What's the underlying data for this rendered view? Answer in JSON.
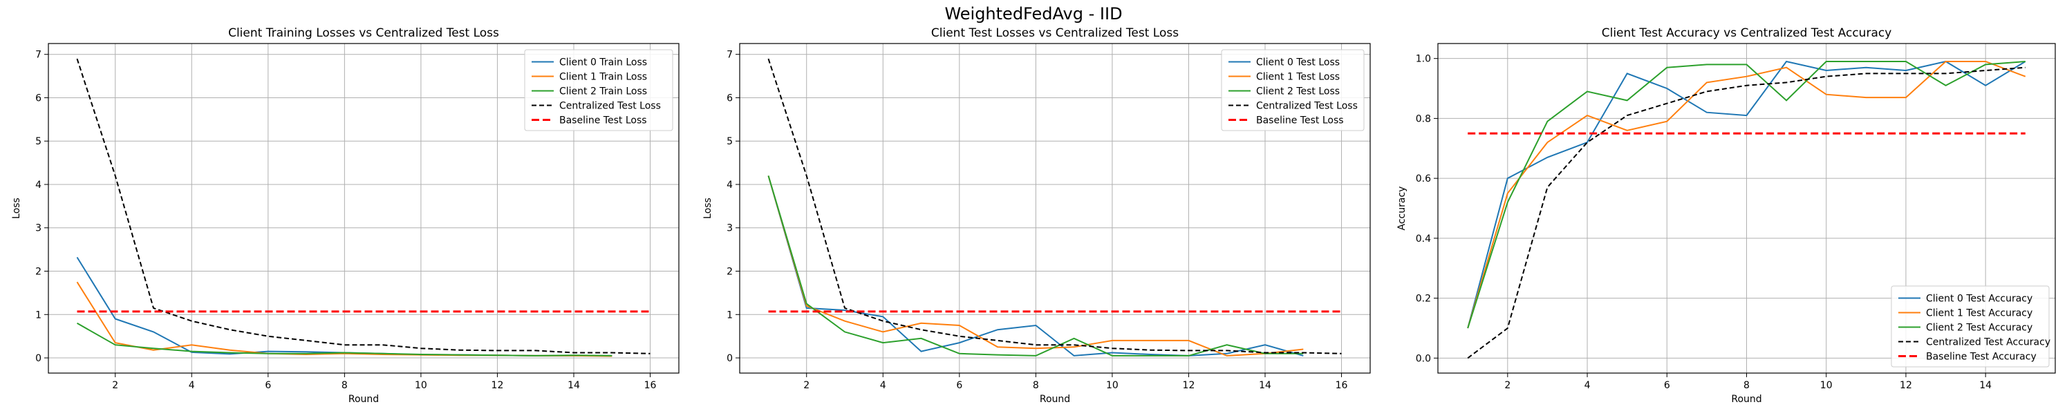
{
  "suptitle": "WeightedFedAvg - IID",
  "colors": {
    "client0": "#1f77b4",
    "client1": "#ff7f0e",
    "client2": "#2ca02c",
    "centralized": "#000000",
    "baseline": "#ff0000",
    "grid": "#b0b0b0"
  },
  "chart_data": [
    {
      "type": "line",
      "title": "Client Training Losses vs Centralized Test Loss",
      "xlabel": "Round",
      "ylabel": "Loss",
      "xlim": [
        0.25,
        16.75
      ],
      "ylim": [
        -0.35,
        7.25
      ],
      "xticks": [
        2,
        4,
        6,
        8,
        10,
        12,
        14,
        16
      ],
      "yticks": [
        0,
        1,
        2,
        3,
        4,
        5,
        6,
        7
      ],
      "grid": true,
      "legend_position": "top-right",
      "series": [
        {
          "name": "Client 0 Train Loss",
          "color": "#1f77b4",
          "style": "solid",
          "x": [
            1,
            2,
            3,
            4,
            5,
            6,
            7,
            8,
            9,
            10,
            11,
            12,
            13,
            14,
            15
          ],
          "y": [
            2.32,
            0.9,
            0.6,
            0.13,
            0.09,
            0.15,
            0.14,
            0.12,
            0.1,
            0.07,
            0.07,
            0.06,
            0.05,
            0.05,
            0.05
          ]
        },
        {
          "name": "Client 1 Train Loss",
          "color": "#ff7f0e",
          "style": "solid",
          "x": [
            1,
            2,
            3,
            4,
            5,
            6,
            7,
            8,
            9,
            10,
            11,
            12,
            13,
            14,
            15
          ],
          "y": [
            1.75,
            0.35,
            0.18,
            0.3,
            0.18,
            0.1,
            0.08,
            0.1,
            0.08,
            0.07,
            0.06,
            0.06,
            0.05,
            0.05,
            0.04
          ]
        },
        {
          "name": "Client 2 Train Loss",
          "color": "#2ca02c",
          "style": "solid",
          "x": [
            1,
            2,
            3,
            4,
            5,
            6,
            7,
            8,
            9,
            10,
            11,
            12,
            13,
            14,
            15
          ],
          "y": [
            0.8,
            0.3,
            0.22,
            0.15,
            0.12,
            0.1,
            0.1,
            0.12,
            0.1,
            0.08,
            0.07,
            0.06,
            0.05,
            0.06,
            0.05
          ]
        },
        {
          "name": "Centralized Test Loss",
          "color": "#000000",
          "style": "dashed",
          "x": [
            1,
            2,
            3,
            4,
            5,
            6,
            7,
            8,
            9,
            10,
            11,
            12,
            13,
            14,
            15,
            16
          ],
          "y": [
            6.9,
            4.2,
            1.15,
            0.85,
            0.65,
            0.5,
            0.4,
            0.3,
            0.3,
            0.22,
            0.18,
            0.17,
            0.17,
            0.12,
            0.12,
            0.1
          ]
        },
        {
          "name": "Baseline Test Loss",
          "color": "#ff0000",
          "style": "dashed-thick",
          "x": [
            1,
            16
          ],
          "y": [
            1.07,
            1.07
          ]
        }
      ]
    },
    {
      "type": "line",
      "title": "Client Test Losses vs Centralized Test Loss",
      "xlabel": "Round",
      "ylabel": "Loss",
      "xlim": [
        0.25,
        16.75
      ],
      "ylim": [
        -0.35,
        7.25
      ],
      "xticks": [
        2,
        4,
        6,
        8,
        10,
        12,
        14,
        16
      ],
      "yticks": [
        0,
        1,
        2,
        3,
        4,
        5,
        6,
        7
      ],
      "grid": true,
      "legend_position": "top-right",
      "series": [
        {
          "name": "Client 0 Test Loss",
          "color": "#1f77b4",
          "style": "solid",
          "x": [
            1,
            2,
            3,
            4,
            5,
            6,
            7,
            8,
            9,
            10,
            11,
            12,
            13,
            14,
            15
          ],
          "y": [
            4.2,
            1.15,
            1.1,
            0.95,
            0.15,
            0.35,
            0.65,
            0.75,
            0.05,
            0.12,
            0.08,
            0.05,
            0.1,
            0.3,
            0.05
          ]
        },
        {
          "name": "Client 1 Test Loss",
          "color": "#ff7f0e",
          "style": "solid",
          "x": [
            1,
            2,
            3,
            4,
            5,
            6,
            7,
            8,
            9,
            10,
            11,
            12,
            13,
            14,
            15
          ],
          "y": [
            4.2,
            1.2,
            0.85,
            0.6,
            0.8,
            0.75,
            0.25,
            0.22,
            0.25,
            0.4,
            0.4,
            0.4,
            0.05,
            0.1,
            0.2
          ]
        },
        {
          "name": "Client 2 Test Loss",
          "color": "#2ca02c",
          "style": "solid",
          "x": [
            1,
            2,
            3,
            4,
            5,
            6,
            7,
            8,
            9,
            10,
            11,
            12,
            13,
            14,
            15
          ],
          "y": [
            4.2,
            1.25,
            0.6,
            0.35,
            0.45,
            0.1,
            0.07,
            0.05,
            0.45,
            0.05,
            0.05,
            0.05,
            0.3,
            0.1,
            0.1
          ]
        },
        {
          "name": "Centralized Test Loss",
          "color": "#000000",
          "style": "dashed",
          "x": [
            1,
            2,
            3,
            4,
            5,
            6,
            7,
            8,
            9,
            10,
            11,
            12,
            13,
            14,
            15,
            16
          ],
          "y": [
            6.9,
            4.2,
            1.15,
            0.85,
            0.65,
            0.5,
            0.4,
            0.3,
            0.3,
            0.22,
            0.18,
            0.17,
            0.17,
            0.12,
            0.12,
            0.1
          ]
        },
        {
          "name": "Baseline Test Loss",
          "color": "#ff0000",
          "style": "dashed-thick",
          "x": [
            1,
            16
          ],
          "y": [
            1.07,
            1.07
          ]
        }
      ]
    },
    {
      "type": "line",
      "title": "Client Test Accuracy vs Centralized Test Accuracy",
      "xlabel": "Round",
      "ylabel": "Accuracy",
      "xlim": [
        0.25,
        15.75
      ],
      "ylim": [
        -0.05,
        1.05
      ],
      "xticks": [
        2,
        4,
        6,
        8,
        10,
        12,
        14
      ],
      "yticks": [
        0.0,
        0.2,
        0.4,
        0.6,
        0.8,
        1.0
      ],
      "ytick_labels": [
        "0.0",
        "0.2",
        "0.4",
        "0.6",
        "0.8",
        "1.0"
      ],
      "grid": true,
      "legend_position": "bottom-right",
      "series": [
        {
          "name": "Client 0 Test Accuracy",
          "color": "#1f77b4",
          "style": "solid",
          "x": [
            1,
            2,
            3,
            4,
            5,
            6,
            7,
            8,
            9,
            10,
            11,
            12,
            13,
            14,
            15
          ],
          "y": [
            0.1,
            0.6,
            0.67,
            0.72,
            0.95,
            0.9,
            0.82,
            0.81,
            0.99,
            0.96,
            0.97,
            0.96,
            0.99,
            0.91,
            0.99
          ]
        },
        {
          "name": "Client 1 Test Accuracy",
          "color": "#ff7f0e",
          "style": "solid",
          "x": [
            1,
            2,
            3,
            4,
            5,
            6,
            7,
            8,
            9,
            10,
            11,
            12,
            13,
            14,
            15
          ],
          "y": [
            0.1,
            0.55,
            0.72,
            0.81,
            0.76,
            0.79,
            0.92,
            0.94,
            0.97,
            0.88,
            0.87,
            0.87,
            0.99,
            0.99,
            0.94
          ]
        },
        {
          "name": "Client 2 Test Accuracy",
          "color": "#2ca02c",
          "style": "solid",
          "x": [
            1,
            2,
            3,
            4,
            5,
            6,
            7,
            8,
            9,
            10,
            11,
            12,
            13,
            14,
            15
          ],
          "y": [
            0.1,
            0.52,
            0.79,
            0.89,
            0.86,
            0.97,
            0.98,
            0.98,
            0.86,
            0.99,
            0.99,
            0.99,
            0.91,
            0.98,
            0.99
          ]
        },
        {
          "name": "Centralized Test Accuracy",
          "color": "#000000",
          "style": "dashed",
          "x": [
            1,
            2,
            3,
            4,
            5,
            6,
            7,
            8,
            9,
            10,
            11,
            12,
            13,
            14,
            15
          ],
          "y": [
            0.0,
            0.1,
            0.57,
            0.72,
            0.81,
            0.85,
            0.89,
            0.91,
            0.92,
            0.94,
            0.95,
            0.95,
            0.95,
            0.96,
            0.97
          ]
        },
        {
          "name": "Baseline Test Accuracy",
          "color": "#ff0000",
          "style": "dashed-thick",
          "x": [
            1,
            15
          ],
          "y": [
            0.75,
            0.75
          ]
        }
      ]
    }
  ]
}
